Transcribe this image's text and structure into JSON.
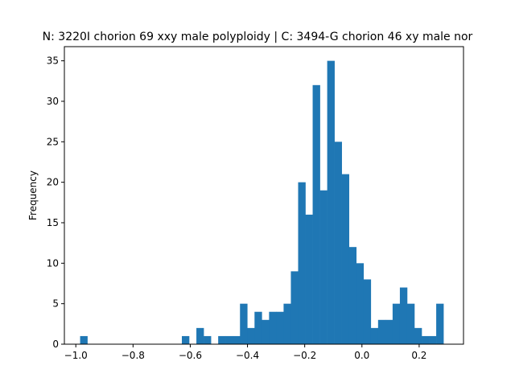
{
  "chart_data": {
    "type": "bar",
    "title": "N: 3220I chorion 69 xxy male polyploidy | C: 3494-G chorion 46 xy male nor",
    "xlabel": "",
    "ylabel": "Frequency",
    "xlim": [
      -1.04,
      0.355
    ],
    "ylim": [
      0,
      36.75
    ],
    "grid": false,
    "legend": "none",
    "bar_color": "#1f77b4",
    "bin_start": -0.985,
    "bin_width": 0.0254,
    "values": [
      1,
      0,
      0,
      0,
      0,
      0,
      0,
      0,
      0,
      0,
      0,
      0,
      0,
      0,
      1,
      0,
      2,
      1,
      0,
      1,
      1,
      1,
      5,
      2,
      4,
      3,
      4,
      4,
      5,
      9,
      20,
      16,
      32,
      19,
      35,
      25,
      21,
      12,
      10,
      8,
      2,
      3,
      3,
      5,
      7,
      5,
      2,
      1,
      1,
      5
    ],
    "x_ticks": [
      -1.0,
      -0.8,
      -0.6,
      -0.4,
      -0.2,
      0.0,
      0.2
    ],
    "x_tick_labels": [
      "−1.0",
      "−0.8",
      "−0.6",
      "−0.4",
      "−0.2",
      "0.0",
      "0.2"
    ],
    "y_ticks": [
      0,
      5,
      10,
      15,
      20,
      25,
      30,
      35
    ],
    "y_tick_labels": [
      "0",
      "5",
      "10",
      "15",
      "20",
      "25",
      "30",
      "35"
    ]
  }
}
